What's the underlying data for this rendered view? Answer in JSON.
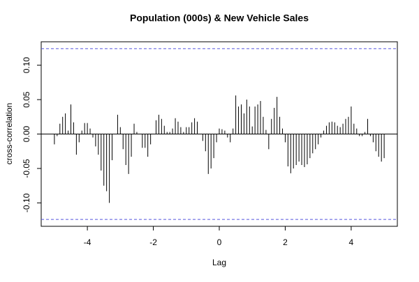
{
  "chart_data": {
    "type": "ccf",
    "title": "Population (000s) & New Vehicle Sales",
    "xlabel": "Lag",
    "ylabel": "cross-correlation",
    "x": [
      -5,
      -4.917,
      -4.833,
      -4.75,
      -4.667,
      -4.583,
      -4.5,
      -4.417,
      -4.333,
      -4.25,
      -4.167,
      -4.083,
      -4,
      -3.917,
      -3.833,
      -3.75,
      -3.667,
      -3.583,
      -3.5,
      -3.417,
      -3.333,
      -3.25,
      -3.167,
      -3.083,
      -3,
      -2.917,
      -2.833,
      -2.75,
      -2.667,
      -2.583,
      -2.5,
      -2.417,
      -2.333,
      -2.25,
      -2.167,
      -2.083,
      -2,
      -1.917,
      -1.833,
      -1.75,
      -1.667,
      -1.583,
      -1.5,
      -1.417,
      -1.333,
      -1.25,
      -1.167,
      -1.083,
      -1,
      -0.917,
      -0.833,
      -0.75,
      -0.667,
      -0.583,
      -0.5,
      -0.417,
      -0.333,
      -0.25,
      -0.167,
      -0.083,
      0,
      0.083,
      0.167,
      0.25,
      0.333,
      0.417,
      0.5,
      0.583,
      0.667,
      0.75,
      0.833,
      0.917,
      1,
      1.083,
      1.167,
      1.25,
      1.333,
      1.417,
      1.5,
      1.583,
      1.667,
      1.75,
      1.833,
      1.917,
      2,
      2.083,
      2.167,
      2.25,
      2.333,
      2.417,
      2.5,
      2.583,
      2.667,
      2.75,
      2.833,
      2.917,
      3,
      3.083,
      3.167,
      3.25,
      3.333,
      3.417,
      3.5,
      3.583,
      3.667,
      3.75,
      3.833,
      3.917,
      4,
      4.083,
      4.167,
      4.25,
      4.333,
      4.417,
      4.5,
      4.583,
      4.667,
      4.75,
      4.833,
      4.917,
      5
    ],
    "values": [
      -0.015,
      -0.003,
      0.015,
      0.025,
      0.03,
      0.005,
      0.043,
      0.017,
      -0.03,
      -0.012,
      0.005,
      0.016,
      0.016,
      0.008,
      -0.005,
      -0.018,
      -0.03,
      -0.053,
      -0.075,
      -0.083,
      -0.1,
      -0.038,
      0,
      0.028,
      0.01,
      -0.022,
      -0.045,
      -0.058,
      -0.033,
      0.015,
      0.003,
      0,
      -0.02,
      -0.02,
      -0.033,
      -0.015,
      0,
      0.02,
      0.028,
      0.022,
      0.012,
      0.003,
      0.003,
      0.008,
      0.023,
      0.018,
      0.01,
      0.003,
      0.01,
      0.01,
      0.017,
      0.023,
      0.018,
      0,
      -0.01,
      -0.025,
      -0.058,
      -0.05,
      -0.035,
      -0.012,
      0.008,
      0.007,
      0.005,
      -0.005,
      -0.012,
      0.008,
      0.056,
      0.04,
      0.043,
      0.03,
      0.05,
      0.04,
      0.011,
      0.04,
      0.043,
      0.048,
      0.025,
      0.006,
      -0.022,
      0.022,
      0.038,
      0.054,
      0.025,
      0.008,
      -0.012,
      -0.047,
      -0.057,
      -0.05,
      -0.045,
      -0.04,
      -0.045,
      -0.048,
      -0.044,
      -0.035,
      -0.028,
      -0.022,
      -0.015,
      -0.005,
      0.005,
      0.012,
      0.017,
      0.018,
      0.017,
      0.012,
      0.01,
      0.015,
      0.022,
      0.025,
      0.04,
      0.015,
      0.008,
      -0.003,
      -0.003,
      0.003,
      0.022,
      -0.003,
      -0.012,
      -0.025,
      -0.033,
      -0.04,
      -0.035
    ],
    "color": "#000000",
    "ci_lines": [
      0.124,
      -0.124
    ],
    "ci_color": "#5555dd",
    "xlim": [
      -5.4,
      5.4
    ],
    "xticks": [
      -4,
      -2,
      0,
      2,
      4
    ],
    "ylim": [
      -0.134,
      0.134
    ],
    "yticks": [
      {
        "value": -0.1,
        "label": "-0.10"
      },
      -0.05,
      {
        "value": 0,
        "label": "0.00"
      },
      0.05,
      {
        "value": 0.1,
        "label": "0.10"
      }
    ]
  }
}
